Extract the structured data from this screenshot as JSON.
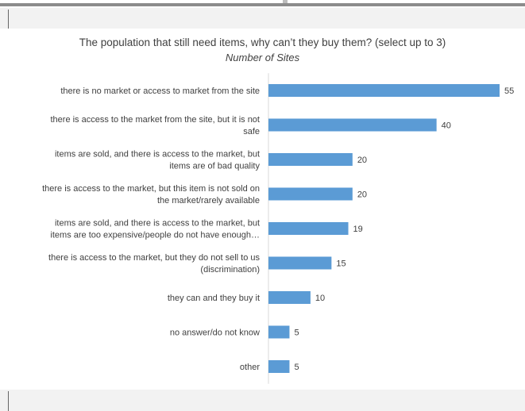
{
  "chart_data": {
    "type": "bar",
    "orientation": "horizontal",
    "title": "The population that still need items, why can’t they buy them? (select up to 3)",
    "subtitle": "Number of Sites",
    "categories": [
      [
        "there is no market or access to market from the site"
      ],
      [
        "there is access to the market from the site, but it is not",
        "safe"
      ],
      [
        "items are sold, and there is access to the market, but",
        "items are of bad quality"
      ],
      [
        "there is access to the market, but this item is not sold on",
        "the market/rarely available"
      ],
      [
        "items are sold, and there is access to the market, but",
        "items are too expensive/people do not have enough…"
      ],
      [
        "there is access to the market, but they do not sell to us",
        "(discrimination)"
      ],
      [
        "they can and they buy it"
      ],
      [
        "no answer/do not know"
      ],
      [
        "other"
      ]
    ],
    "values": [
      55,
      40,
      20,
      20,
      19,
      15,
      10,
      5,
      5
    ],
    "xlim": [
      0,
      55
    ],
    "bar_color": "#5b9bd5",
    "data_labels": true,
    "grid": false,
    "legend": "none"
  }
}
